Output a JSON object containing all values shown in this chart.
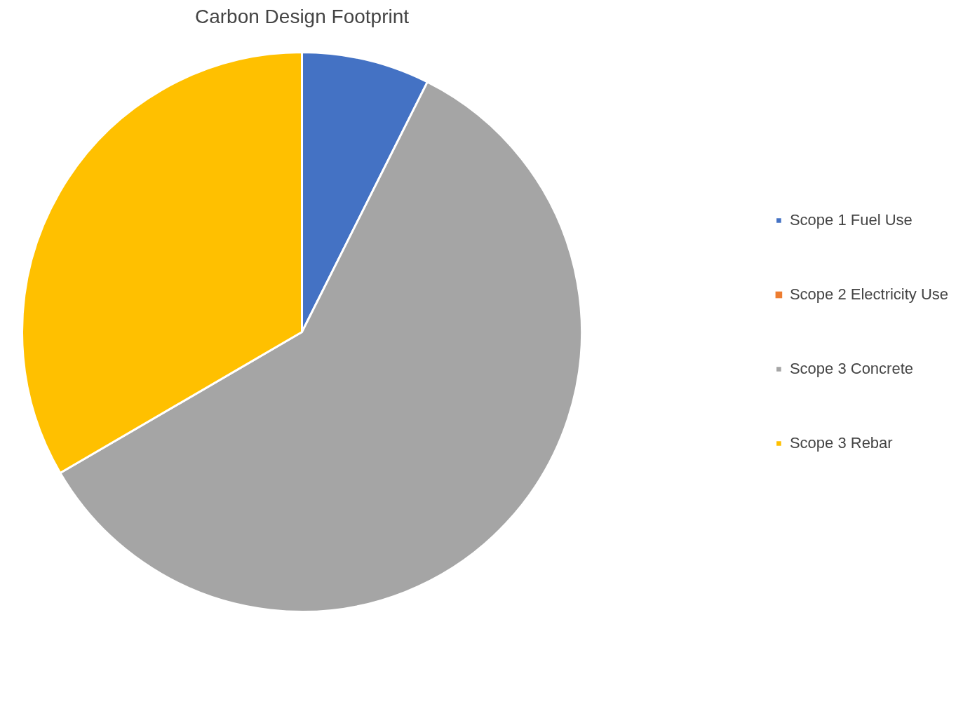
{
  "chart_data": {
    "type": "pie",
    "title": "Carbon Design Footprint",
    "categories": [
      "Scope 1 Fuel Use",
      "Scope 2 Electricity Use",
      "Scope 3 Concrete",
      "Scope 3 Rebar"
    ],
    "values": [
      7.4,
      0,
      59.2,
      33.4
    ],
    "colors": [
      "#4472c4",
      "#ed7d31",
      "#a5a5a5",
      "#ffc000"
    ],
    "legend": "right"
  }
}
